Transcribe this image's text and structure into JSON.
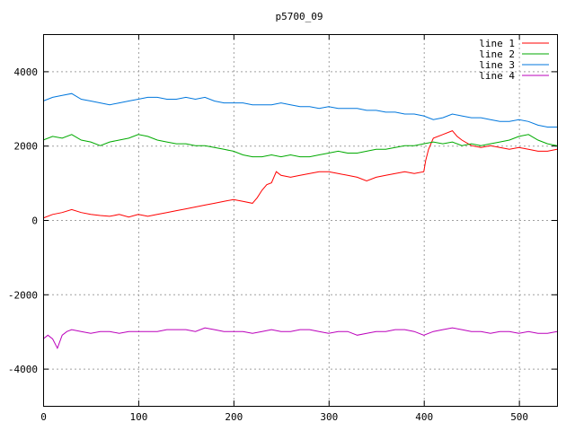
{
  "chart_data": {
    "type": "line",
    "title": "p5700_09",
    "xlabel": "",
    "ylabel": "",
    "xlim": [
      0,
      540
    ],
    "ylim": [
      -5000,
      5000
    ],
    "x_ticks": [
      "0",
      "100",
      "200",
      "300",
      "400",
      "500"
    ],
    "y_ticks": [
      "-4000",
      "-2000",
      "0",
      "2000",
      "4000"
    ],
    "grid": true,
    "legend_position": "top-right",
    "series": [
      {
        "name": "line 1",
        "color": "#ff0000",
        "x": [
          0,
          10,
          20,
          30,
          40,
          50,
          60,
          70,
          80,
          90,
          100,
          110,
          120,
          130,
          140,
          150,
          160,
          170,
          180,
          190,
          200,
          210,
          220,
          225,
          230,
          235,
          240,
          245,
          250,
          260,
          270,
          280,
          290,
          300,
          310,
          320,
          330,
          340,
          350,
          360,
          370,
          380,
          390,
          400,
          402,
          405,
          410,
          420,
          430,
          435,
          440,
          450,
          460,
          470,
          480,
          490,
          500,
          510,
          520,
          530,
          540
        ],
        "y": [
          50,
          150,
          200,
          280,
          200,
          150,
          120,
          100,
          150,
          80,
          150,
          100,
          150,
          200,
          250,
          300,
          350,
          400,
          450,
          500,
          550,
          500,
          450,
          600,
          800,
          950,
          1000,
          1300,
          1200,
          1150,
          1200,
          1250,
          1300,
          1300,
          1250,
          1200,
          1150,
          1050,
          1150,
          1200,
          1250,
          1300,
          1250,
          1300,
          1600,
          1900,
          2200,
          2300,
          2400,
          2250,
          2150,
          2000,
          1950,
          2000,
          1950,
          1900,
          1950,
          1900,
          1850,
          1850,
          1900
        ]
      },
      {
        "name": "line 2",
        "color": "#00aa00",
        "x": [
          0,
          10,
          20,
          30,
          40,
          50,
          60,
          70,
          80,
          90,
          100,
          110,
          120,
          130,
          140,
          150,
          160,
          170,
          180,
          190,
          200,
          210,
          220,
          230,
          240,
          250,
          260,
          270,
          280,
          290,
          300,
          310,
          320,
          330,
          340,
          350,
          360,
          370,
          380,
          390,
          400,
          410,
          420,
          430,
          440,
          450,
          460,
          470,
          480,
          490,
          500,
          510,
          520,
          530,
          540
        ],
        "y": [
          2150,
          2250,
          2200,
          2300,
          2150,
          2100,
          2000,
          2100,
          2150,
          2200,
          2300,
          2250,
          2150,
          2100,
          2050,
          2050,
          2000,
          2000,
          1950,
          1900,
          1850,
          1750,
          1700,
          1700,
          1750,
          1700,
          1750,
          1700,
          1700,
          1750,
          1800,
          1850,
          1800,
          1800,
          1850,
          1900,
          1900,
          1950,
          2000,
          2000,
          2050,
          2100,
          2050,
          2100,
          2000,
          2050,
          2000,
          2050,
          2100,
          2150,
          2250,
          2300,
          2150,
          2050,
          2000
        ]
      },
      {
        "name": "line 3",
        "color": "#0077dd",
        "x": [
          0,
          10,
          20,
          30,
          40,
          50,
          60,
          70,
          80,
          90,
          100,
          110,
          120,
          130,
          140,
          150,
          160,
          170,
          180,
          190,
          200,
          210,
          220,
          230,
          240,
          250,
          260,
          270,
          280,
          290,
          300,
          310,
          320,
          330,
          340,
          350,
          360,
          370,
          380,
          390,
          400,
          410,
          420,
          430,
          440,
          450,
          460,
          470,
          480,
          490,
          500,
          510,
          520,
          530,
          540
        ],
        "y": [
          3200,
          3300,
          3350,
          3400,
          3250,
          3200,
          3150,
          3100,
          3150,
          3200,
          3250,
          3300,
          3300,
          3250,
          3250,
          3300,
          3250,
          3300,
          3200,
          3150,
          3150,
          3150,
          3100,
          3100,
          3100,
          3150,
          3100,
          3050,
          3050,
          3000,
          3050,
          3000,
          3000,
          3000,
          2950,
          2950,
          2900,
          2900,
          2850,
          2850,
          2800,
          2700,
          2750,
          2850,
          2800,
          2750,
          2750,
          2700,
          2650,
          2650,
          2700,
          2650,
          2550,
          2500,
          2500
        ]
      },
      {
        "name": "line 4",
        "color": "#bb00bb",
        "x": [
          0,
          5,
          10,
          15,
          20,
          25,
          30,
          40,
          50,
          60,
          70,
          80,
          90,
          100,
          110,
          120,
          130,
          140,
          150,
          160,
          170,
          180,
          190,
          200,
          210,
          220,
          230,
          240,
          250,
          260,
          270,
          280,
          290,
          300,
          310,
          320,
          330,
          340,
          350,
          360,
          370,
          380,
          390,
          400,
          410,
          420,
          430,
          440,
          450,
          460,
          470,
          480,
          490,
          500,
          510,
          520,
          530,
          540
        ],
        "y": [
          -3200,
          -3100,
          -3200,
          -3450,
          -3100,
          -3000,
          -2950,
          -3000,
          -3050,
          -3000,
          -3000,
          -3050,
          -3000,
          -3000,
          -3000,
          -3000,
          -2950,
          -2950,
          -2950,
          -3000,
          -2900,
          -2950,
          -3000,
          -3000,
          -3000,
          -3050,
          -3000,
          -2950,
          -3000,
          -3000,
          -2950,
          -2950,
          -3000,
          -3050,
          -3000,
          -3000,
          -3100,
          -3050,
          -3000,
          -3000,
          -2950,
          -2950,
          -3000,
          -3100,
          -3000,
          -2950,
          -2900,
          -2950,
          -3000,
          -3000,
          -3050,
          -3000,
          -3000,
          -3050,
          -3000,
          -3050,
          -3050,
          -3000
        ]
      }
    ]
  }
}
